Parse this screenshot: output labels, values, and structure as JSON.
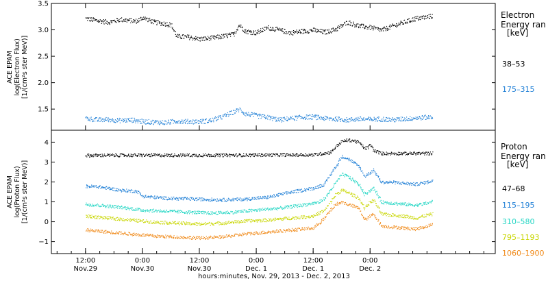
{
  "chart_data": [
    {
      "type": "scatter",
      "panel": "electron",
      "ylabel_lines": [
        "ACE EPAM",
        "log(Electron Flux)",
        "[1/(cm²s ster MeV)]"
      ],
      "ylim": [
        1.1,
        3.5
      ],
      "yticks": [
        1.5,
        2.0,
        2.5,
        3.0,
        3.5
      ],
      "ytick_labels": [
        "1.5",
        "2.0",
        "2.5",
        "3.0",
        "3.5"
      ],
      "legend": {
        "title_lines": [
          "Electron",
          "Energy ran",
          "[keV]"
        ],
        "entries": [
          {
            "label": "38–53",
            "color": "#000000"
          },
          {
            "label": "175–315",
            "color": "#1f7fd6"
          }
        ]
      },
      "series": [
        {
          "color": "#000000",
          "points": [
            [
              0,
              3.22
            ],
            [
              0.1,
              3.18
            ],
            [
              0.2,
              3.15
            ],
            [
              0.3,
              3.2
            ],
            [
              0.45,
              3.17
            ],
            [
              0.5,
              3.24
            ],
            [
              0.6,
              3.15
            ],
            [
              0.7,
              3.12
            ],
            [
              0.75,
              3.1
            ],
            [
              0.8,
              2.88
            ],
            [
              0.9,
              2.87
            ],
            [
              1.0,
              2.83
            ],
            [
              1.1,
              2.85
            ],
            [
              1.2,
              2.88
            ],
            [
              1.3,
              2.92
            ],
            [
              1.35,
              3.1
            ],
            [
              1.4,
              2.98
            ],
            [
              1.5,
              2.95
            ],
            [
              1.6,
              3.05
            ],
            [
              1.7,
              3.0
            ],
            [
              1.8,
              2.95
            ],
            [
              1.9,
              2.98
            ],
            [
              2.0,
              3.0
            ],
            [
              2.1,
              2.96
            ],
            [
              2.2,
              3.02
            ],
            [
              2.3,
              3.15
            ],
            [
              2.4,
              3.08
            ],
            [
              2.5,
              3.05
            ],
            [
              2.6,
              3.0
            ],
            [
              2.7,
              3.08
            ],
            [
              2.8,
              3.15
            ],
            [
              2.9,
              3.22
            ],
            [
              3.0,
              3.25
            ],
            [
              3.05,
              3.27
            ]
          ]
        },
        {
          "color": "#1f7fd6",
          "points": [
            [
              0,
              1.33
            ],
            [
              0.1,
              1.3
            ],
            [
              0.2,
              1.31
            ],
            [
              0.3,
              1.29
            ],
            [
              0.4,
              1.3
            ],
            [
              0.5,
              1.27
            ],
            [
              0.6,
              1.26
            ],
            [
              0.7,
              1.25
            ],
            [
              0.8,
              1.28
            ],
            [
              0.9,
              1.27
            ],
            [
              1.0,
              1.27
            ],
            [
              1.1,
              1.29
            ],
            [
              1.2,
              1.36
            ],
            [
              1.3,
              1.45
            ],
            [
              1.35,
              1.5
            ],
            [
              1.4,
              1.42
            ],
            [
              1.5,
              1.38
            ],
            [
              1.6,
              1.35
            ],
            [
              1.7,
              1.3
            ],
            [
              1.8,
              1.33
            ],
            [
              1.9,
              1.35
            ],
            [
              2.0,
              1.36
            ],
            [
              2.1,
              1.33
            ],
            [
              2.2,
              1.32
            ],
            [
              2.3,
              1.3
            ],
            [
              2.4,
              1.32
            ],
            [
              2.5,
              1.31
            ],
            [
              2.6,
              1.32
            ],
            [
              2.7,
              1.3
            ],
            [
              2.8,
              1.32
            ],
            [
              2.9,
              1.34
            ],
            [
              3.0,
              1.35
            ],
            [
              3.05,
              1.36
            ]
          ]
        }
      ]
    },
    {
      "type": "scatter",
      "panel": "proton",
      "ylabel_lines": [
        "ACE EPAM",
        "log(Proton Flux)",
        "[1/(cm²s ster MeV)]"
      ],
      "ylim": [
        -1.6,
        4.6
      ],
      "yticks": [
        -1,
        0,
        1,
        2,
        3,
        4
      ],
      "ytick_labels": [
        "−1",
        "0",
        "1",
        "2",
        "3",
        "4"
      ],
      "legend": {
        "title_lines": [
          "Proton",
          "Energy ran",
          "[keV]"
        ],
        "entries": [
          {
            "label": "47–68",
            "color": "#000000"
          },
          {
            "label": "115–195",
            "color": "#1f7fd6"
          },
          {
            "label": "310–580",
            "color": "#23d6c4"
          },
          {
            "label": "795–1193",
            "color": "#c8d600"
          },
          {
            "label": "1060–1900",
            "color": "#f08a1a"
          }
        ]
      },
      "series": [
        {
          "color": "#000000",
          "points": [
            [
              0,
              3.35
            ],
            [
              0.5,
              3.36
            ],
            [
              1.0,
              3.36
            ],
            [
              1.5,
              3.37
            ],
            [
              2.0,
              3.38
            ],
            [
              2.15,
              3.5
            ],
            [
              2.2,
              3.8
            ],
            [
              2.25,
              4.05
            ],
            [
              2.3,
              4.12
            ],
            [
              2.35,
              4.1
            ],
            [
              2.4,
              4.0
            ],
            [
              2.45,
              3.7
            ],
            [
              2.48,
              3.75
            ],
            [
              2.5,
              3.9
            ],
            [
              2.53,
              3.6
            ],
            [
              2.6,
              3.45
            ],
            [
              2.8,
              3.45
            ],
            [
              3.0,
              3.45
            ],
            [
              3.05,
              3.46
            ]
          ]
        },
        {
          "color": "#1f7fd6",
          "points": [
            [
              0,
              1.8
            ],
            [
              0.1,
              1.78
            ],
            [
              0.2,
              1.7
            ],
            [
              0.3,
              1.6
            ],
            [
              0.45,
              1.55
            ],
            [
              0.5,
              1.3
            ],
            [
              0.6,
              1.25
            ],
            [
              0.7,
              1.2
            ],
            [
              0.8,
              1.18
            ],
            [
              1.0,
              1.15
            ],
            [
              1.2,
              1.12
            ],
            [
              1.4,
              1.15
            ],
            [
              1.6,
              1.25
            ],
            [
              1.8,
              1.5
            ],
            [
              2.0,
              1.7
            ],
            [
              2.1,
              1.9
            ],
            [
              2.15,
              2.4
            ],
            [
              2.2,
              2.8
            ],
            [
              2.25,
              3.3
            ],
            [
              2.3,
              3.2
            ],
            [
              2.4,
              2.8
            ],
            [
              2.45,
              2.3
            ],
            [
              2.5,
              2.5
            ],
            [
              2.53,
              2.6
            ],
            [
              2.6,
              2.0
            ],
            [
              2.7,
              2.0
            ],
            [
              2.8,
              1.95
            ],
            [
              2.9,
              1.9
            ],
            [
              3.0,
              2.0
            ],
            [
              3.05,
              2.1
            ]
          ]
        },
        {
          "color": "#23d6c4",
          "points": [
            [
              0,
              0.9
            ],
            [
              0.1,
              0.85
            ],
            [
              0.2,
              0.8
            ],
            [
              0.3,
              0.75
            ],
            [
              0.5,
              0.6
            ],
            [
              0.7,
              0.55
            ],
            [
              0.9,
              0.5
            ],
            [
              1.1,
              0.45
            ],
            [
              1.3,
              0.5
            ],
            [
              1.5,
              0.6
            ],
            [
              1.7,
              0.7
            ],
            [
              1.9,
              0.85
            ],
            [
              2.05,
              1.0
            ],
            [
              2.1,
              1.2
            ],
            [
              2.15,
              1.6
            ],
            [
              2.2,
              2.0
            ],
            [
              2.25,
              2.4
            ],
            [
              2.3,
              2.3
            ],
            [
              2.4,
              1.9
            ],
            [
              2.45,
              1.4
            ],
            [
              2.5,
              1.6
            ],
            [
              2.53,
              1.7
            ],
            [
              2.6,
              1.0
            ],
            [
              2.8,
              0.9
            ],
            [
              2.9,
              0.85
            ],
            [
              3.0,
              0.95
            ],
            [
              3.05,
              1.05
            ]
          ]
        },
        {
          "color": "#c8d600",
          "points": [
            [
              0,
              0.3
            ],
            [
              0.1,
              0.25
            ],
            [
              0.2,
              0.2
            ],
            [
              0.4,
              0.1
            ],
            [
              0.6,
              0.0
            ],
            [
              0.8,
              -0.05
            ],
            [
              1.0,
              -0.1
            ],
            [
              1.2,
              -0.05
            ],
            [
              1.4,
              0.05
            ],
            [
              1.6,
              0.1
            ],
            [
              1.8,
              0.2
            ],
            [
              2.0,
              0.3
            ],
            [
              2.1,
              0.6
            ],
            [
              2.15,
              1.0
            ],
            [
              2.2,
              1.4
            ],
            [
              2.25,
              1.6
            ],
            [
              2.3,
              1.5
            ],
            [
              2.4,
              1.2
            ],
            [
              2.45,
              0.7
            ],
            [
              2.5,
              1.0
            ],
            [
              2.53,
              1.1
            ],
            [
              2.6,
              0.4
            ],
            [
              2.8,
              0.3
            ],
            [
              2.9,
              0.2
            ],
            [
              3.0,
              0.35
            ],
            [
              3.05,
              0.4
            ]
          ]
        },
        {
          "color": "#f08a1a",
          "points": [
            [
              0,
              -0.4
            ],
            [
              0.1,
              -0.45
            ],
            [
              0.2,
              -0.5
            ],
            [
              0.4,
              -0.6
            ],
            [
              0.6,
              -0.7
            ],
            [
              0.8,
              -0.75
            ],
            [
              1.0,
              -0.8
            ],
            [
              1.2,
              -0.75
            ],
            [
              1.4,
              -0.6
            ],
            [
              1.6,
              -0.5
            ],
            [
              1.8,
              -0.4
            ],
            [
              2.0,
              -0.3
            ],
            [
              2.1,
              0.2
            ],
            [
              2.15,
              0.6
            ],
            [
              2.2,
              0.9
            ],
            [
              2.25,
              1.0
            ],
            [
              2.3,
              0.9
            ],
            [
              2.4,
              0.7
            ],
            [
              2.45,
              0.1
            ],
            [
              2.5,
              0.3
            ],
            [
              2.53,
              0.4
            ],
            [
              2.6,
              -0.2
            ],
            [
              2.8,
              -0.3
            ],
            [
              2.9,
              -0.35
            ],
            [
              3.0,
              -0.2
            ],
            [
              3.05,
              -0.1
            ]
          ]
        }
      ]
    }
  ],
  "x_axis": {
    "xlim": [
      -0.3,
      3.6
    ],
    "ticks": [
      {
        "x": 0.0,
        "line1": "12:00",
        "line2": "Nov.29"
      },
      {
        "x": 0.5,
        "line1": "0:00",
        "line2": "Nov.30"
      },
      {
        "x": 1.0,
        "line1": "12:00",
        "line2": "Nov.30"
      },
      {
        "x": 1.5,
        "line1": "0:00",
        "line2": "Dec. 1"
      },
      {
        "x": 2.0,
        "line1": "12:00",
        "line2": "Dec. 1"
      },
      {
        "x": 2.5,
        "line1": "0:00",
        "line2": "Dec. 2"
      }
    ],
    "xlabel": "hours:minutes, Nov. 29, 2013 - Dec. 2, 2013"
  }
}
